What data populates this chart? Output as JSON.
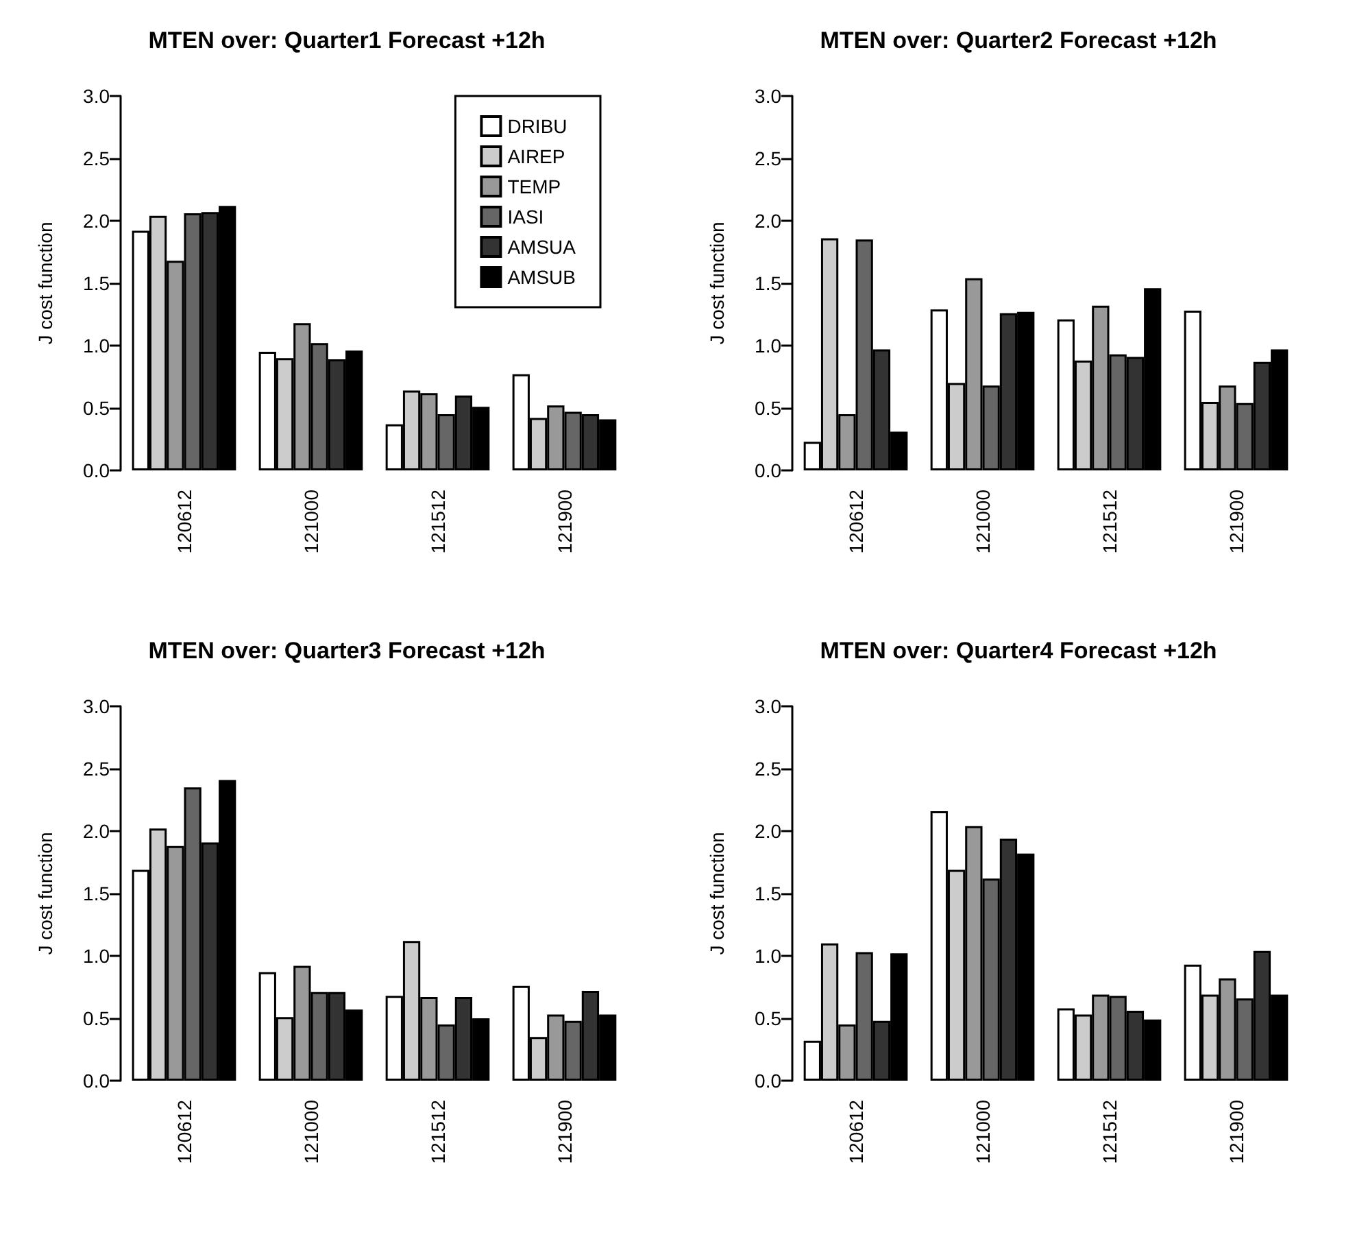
{
  "chart_data": [
    {
      "type": "bar",
      "title": "MTEN over: Quarter1 Forecast +12h",
      "ylabel": "J cost function",
      "categories": [
        "120612",
        "121000",
        "121512",
        "121900"
      ],
      "ylim": [
        0,
        3
      ],
      "yticks": [
        {
          "value": 0,
          "label": "0.0"
        },
        0.5,
        {
          "value": 1,
          "label": "1.0"
        },
        1.5,
        {
          "value": 2,
          "label": "2.0"
        },
        2.5,
        {
          "value": 3,
          "label": "3.0"
        }
      ],
      "grid": false,
      "legend": "top right",
      "series": [
        {
          "name": "DRIBU",
          "color": "#ffffff",
          "values": [
            1.92,
            0.95,
            0.37,
            0.77
          ]
        },
        {
          "name": "AIREP",
          "color": "#cccccc",
          "values": [
            2.04,
            0.9,
            0.64,
            0.42
          ]
        },
        {
          "name": "TEMP",
          "color": "#999999",
          "values": [
            1.68,
            1.18,
            0.62,
            0.52
          ]
        },
        {
          "name": "IASI",
          "color": "#666666",
          "values": [
            2.06,
            1.02,
            0.45,
            0.47
          ]
        },
        {
          "name": "AMSUA",
          "color": "#333333",
          "values": [
            2.07,
            0.89,
            0.6,
            0.45
          ]
        },
        {
          "name": "AMSUB",
          "color": "#000000",
          "values": [
            2.12,
            0.96,
            0.51,
            0.41
          ]
        }
      ]
    },
    {
      "type": "bar",
      "title": "MTEN over: Quarter2 Forecast +12h",
      "ylabel": "J cost function",
      "categories": [
        "120612",
        "121000",
        "121512",
        "121900"
      ],
      "ylim": [
        0,
        3
      ],
      "yticks": [
        {
          "value": 0,
          "label": "0.0"
        },
        0.5,
        {
          "value": 1,
          "label": "1.0"
        },
        1.5,
        {
          "value": 2,
          "label": "2.0"
        },
        2.5,
        {
          "value": 3,
          "label": "3.0"
        }
      ],
      "grid": false,
      "legend": false,
      "series": [
        {
          "color": "#ffffff",
          "values": [
            0.23,
            1.29,
            1.21,
            1.28
          ]
        },
        {
          "color": "#cccccc",
          "values": [
            1.86,
            0.7,
            0.88,
            0.55
          ]
        },
        {
          "color": "#999999",
          "values": [
            0.45,
            1.54,
            1.32,
            0.68
          ]
        },
        {
          "color": "#666666",
          "values": [
            1.85,
            0.68,
            0.93,
            0.54
          ]
        },
        {
          "color": "#333333",
          "values": [
            0.97,
            1.26,
            0.91,
            0.87
          ]
        },
        {
          "color": "#000000",
          "values": [
            0.31,
            1.27,
            1.46,
            0.97
          ]
        }
      ]
    },
    {
      "type": "bar",
      "title": "MTEN over: Quarter3 Forecast +12h",
      "ylabel": "J cost function",
      "categories": [
        "120612",
        "121000",
        "121512",
        "121900"
      ],
      "ylim": [
        0,
        3
      ],
      "yticks": [
        {
          "value": 0,
          "label": "0.0"
        },
        0.5,
        {
          "value": 1,
          "label": "1.0"
        },
        1.5,
        {
          "value": 2,
          "label": "2.0"
        },
        2.5,
        {
          "value": 3,
          "label": "3.0"
        }
      ],
      "grid": false,
      "legend": false,
      "series": [
        {
          "color": "#ffffff",
          "values": [
            1.69,
            0.87,
            0.68,
            0.76
          ]
        },
        {
          "color": "#cccccc",
          "values": [
            2.02,
            0.51,
            1.12,
            0.35
          ]
        },
        {
          "color": "#999999",
          "values": [
            1.88,
            0.92,
            0.67,
            0.53
          ]
        },
        {
          "color": "#666666",
          "values": [
            2.35,
            0.71,
            0.45,
            0.48
          ]
        },
        {
          "color": "#333333",
          "values": [
            1.91,
            0.71,
            0.67,
            0.72
          ]
        },
        {
          "color": "#000000",
          "values": [
            2.41,
            0.57,
            0.5,
            0.53
          ]
        }
      ]
    },
    {
      "type": "bar",
      "title": "MTEN over: Quarter4 Forecast +12h",
      "ylabel": "J cost function",
      "categories": [
        "120612",
        "121000",
        "121512",
        "121900"
      ],
      "ylim": [
        0,
        3
      ],
      "yticks": [
        {
          "value": 0,
          "label": "0.0"
        },
        0.5,
        {
          "value": 1,
          "label": "1.0"
        },
        1.5,
        {
          "value": 2,
          "label": "2.0"
        },
        2.5,
        {
          "value": 3,
          "label": "3.0"
        }
      ],
      "grid": false,
      "legend": false,
      "series": [
        {
          "color": "#ffffff",
          "values": [
            0.32,
            2.16,
            0.58,
            0.93
          ]
        },
        {
          "color": "#cccccc",
          "values": [
            1.1,
            1.69,
            0.53,
            0.69
          ]
        },
        {
          "color": "#999999",
          "values": [
            0.45,
            2.04,
            0.69,
            0.82
          ]
        },
        {
          "color": "#666666",
          "values": [
            1.03,
            1.62,
            0.68,
            0.66
          ]
        },
        {
          "color": "#333333",
          "values": [
            0.48,
            1.94,
            0.56,
            1.04
          ]
        },
        {
          "color": "#000000",
          "values": [
            1.02,
            1.82,
            0.49,
            0.69
          ]
        }
      ]
    }
  ]
}
